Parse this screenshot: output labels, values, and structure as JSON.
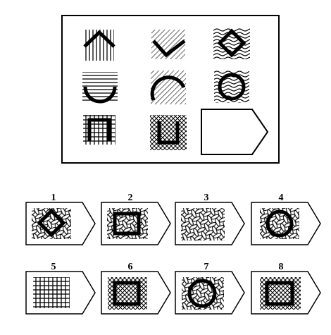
{
  "puzzle": {
    "matrix": [
      {
        "row": 1,
        "col": 1,
        "pattern": "vertical-lines",
        "shape": "caret-up"
      },
      {
        "row": 1,
        "col": 2,
        "pattern": "diagonal-lines",
        "shape": "check-v"
      },
      {
        "row": 1,
        "col": 3,
        "pattern": "wavy-lines",
        "shape": "diamond"
      },
      {
        "row": 2,
        "col": 1,
        "pattern": "horizontal-lines",
        "shape": "arc-bottom"
      },
      {
        "row": 2,
        "col": 2,
        "pattern": "diagonal-lines",
        "shape": "arc-top"
      },
      {
        "row": 2,
        "col": 3,
        "pattern": "wavy-lines",
        "shape": "circle"
      },
      {
        "row": 3,
        "col": 1,
        "pattern": "grid-lines",
        "shape": "square-open-bottom"
      },
      {
        "row": 3,
        "col": 2,
        "pattern": "cross-hatch",
        "shape": "square-open-top"
      },
      {
        "row": 3,
        "col": 3,
        "pattern": "blank",
        "shape": "answer-slot"
      }
    ],
    "options": [
      {
        "label": "1",
        "pattern": "wavy-lines",
        "shape": "diamond"
      },
      {
        "label": "2",
        "pattern": "wavy-lines",
        "shape": "square"
      },
      {
        "label": "3",
        "pattern": "wavy-lines",
        "shape": "none"
      },
      {
        "label": "4",
        "pattern": "wavy-lines",
        "shape": "circle"
      },
      {
        "label": "5",
        "pattern": "grid-lines",
        "shape": "none"
      },
      {
        "label": "6",
        "pattern": "cross-hatch",
        "shape": "square"
      },
      {
        "label": "7",
        "pattern": "wavy-lines",
        "shape": "circle"
      },
      {
        "label": "8",
        "pattern": "cross-hatch",
        "shape": "square"
      }
    ]
  }
}
